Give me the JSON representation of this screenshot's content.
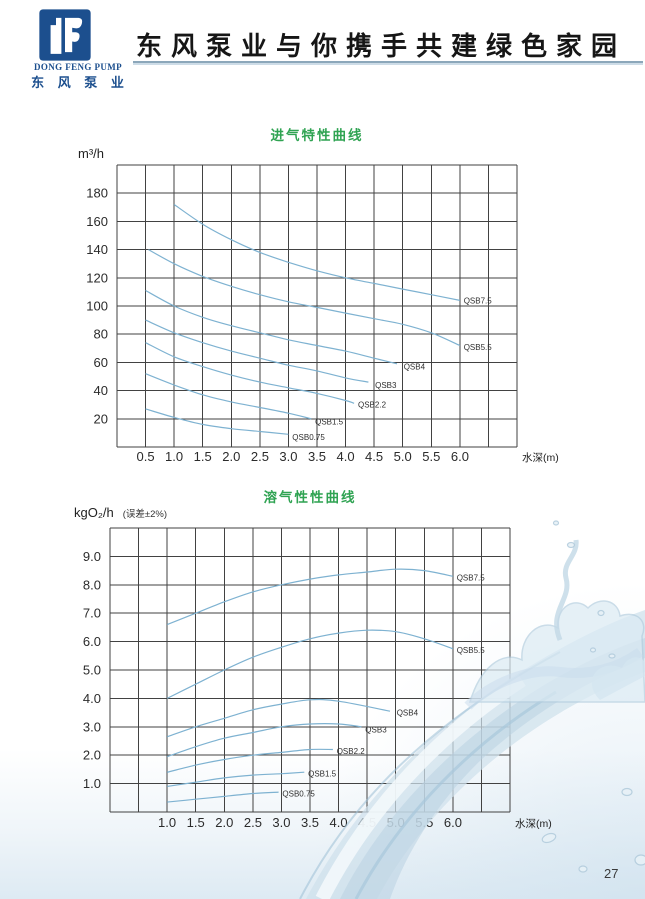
{
  "page": {
    "number": "27"
  },
  "header": {
    "company_en": "DONG FENG PUMP",
    "company_zh": "东 风 泵 业",
    "slogan": "东风泵业与你携手共建绿色家园"
  },
  "colors": {
    "logo_blue": "#1c4f8e",
    "title_green": "#2fa352",
    "curve_blue": "#7eb2d1",
    "grid_gray": "#424242",
    "splash_blue": "#cfe0ec"
  },
  "chart_data": [
    {
      "type": "line",
      "title": "进气特性曲线",
      "unit_label": "m³/h",
      "xlabel": "水深(m)",
      "xlim": [
        0,
        7
      ],
      "xgrid": 0.5,
      "ylim": [
        0,
        200
      ],
      "ygrid": 20,
      "xticks": [
        "0.5",
        "1.0",
        "1.5",
        "2.0",
        "2.5",
        "3.0",
        "3.5",
        "4.0",
        "4.5",
        "5.0",
        "5.5",
        "6.0"
      ],
      "yticks": [
        "20",
        "40",
        "60",
        "80",
        "100",
        "120",
        "140",
        "160",
        "180"
      ],
      "series": [
        {
          "name": "QSB7.5",
          "points": [
            [
              1.0,
              172
            ],
            [
              1.5,
              158
            ],
            [
              2.0,
              147
            ],
            [
              2.5,
              138
            ],
            [
              3.0,
              131
            ],
            [
              3.5,
              125
            ],
            [
              4.0,
              120
            ],
            [
              4.5,
              116
            ],
            [
              5.0,
              112
            ],
            [
              5.5,
              108
            ],
            [
              6.0,
              104
            ]
          ],
          "label_xy": [
            6.05,
            104
          ]
        },
        {
          "name": "QSB5.5",
          "points": [
            [
              0.55,
              140
            ],
            [
              1.0,
              130
            ],
            [
              1.5,
              121
            ],
            [
              2.0,
              114
            ],
            [
              2.5,
              108
            ],
            [
              3.0,
              103
            ],
            [
              3.5,
              99
            ],
            [
              4.0,
              95
            ],
            [
              4.5,
              91
            ],
            [
              5.0,
              87
            ],
            [
              5.5,
              81
            ],
            [
              6.0,
              72
            ]
          ],
          "label_xy": [
            6.05,
            71
          ]
        },
        {
          "name": "QSB4",
          "points": [
            [
              0.5,
              111
            ],
            [
              1.0,
              100
            ],
            [
              1.5,
              92
            ],
            [
              2.0,
              86
            ],
            [
              2.5,
              81
            ],
            [
              3.0,
              76
            ],
            [
              3.5,
              72
            ],
            [
              4.0,
              68
            ],
            [
              4.5,
              63
            ],
            [
              4.9,
              59
            ]
          ],
          "label_xy": [
            5.0,
            57
          ]
        },
        {
          "name": "QSB3",
          "points": [
            [
              0.5,
              90
            ],
            [
              1.0,
              81
            ],
            [
              1.5,
              74
            ],
            [
              2.0,
              68
            ],
            [
              2.5,
              63
            ],
            [
              3.0,
              58
            ],
            [
              3.5,
              54
            ],
            [
              4.0,
              49
            ],
            [
              4.4,
              46
            ]
          ],
          "label_xy": [
            4.5,
            44
          ]
        },
        {
          "name": "QSB2.2",
          "points": [
            [
              0.5,
              74
            ],
            [
              1.0,
              64
            ],
            [
              1.5,
              57
            ],
            [
              2.0,
              51
            ],
            [
              2.5,
              46
            ],
            [
              3.0,
              42
            ],
            [
              3.5,
              38
            ],
            [
              4.0,
              33
            ],
            [
              4.15,
              31
            ]
          ],
          "label_xy": [
            4.2,
            30
          ]
        },
        {
          "name": "QSB1.5",
          "points": [
            [
              0.5,
              52
            ],
            [
              1.0,
              44
            ],
            [
              1.5,
              37
            ],
            [
              2.0,
              32
            ],
            [
              2.5,
              28
            ],
            [
              3.0,
              24
            ],
            [
              3.4,
              20
            ]
          ],
          "label_xy": [
            3.45,
            18
          ]
        },
        {
          "name": "QSB0.75",
          "points": [
            [
              0.5,
              27
            ],
            [
              1.0,
              21
            ],
            [
              1.5,
              16
            ],
            [
              2.0,
              13
            ],
            [
              2.5,
              11
            ],
            [
              3.0,
              9
            ]
          ],
          "label_xy": [
            3.05,
            7
          ]
        }
      ]
    },
    {
      "type": "line",
      "title": "溶气性性曲线",
      "unit_label": "kgO₂/h",
      "error_note": "(误差±2%)",
      "xlabel": "水深(m)",
      "xlim": [
        0,
        7
      ],
      "xgrid": 0.5,
      "ylim": [
        0,
        10
      ],
      "ygrid": 1,
      "xticks": [
        "1.0",
        "1.5",
        "2.0",
        "2.5",
        "3.0",
        "3.5",
        "4.0",
        "4.5",
        "5.0",
        "5.5",
        "6.0"
      ],
      "yticks": [
        "1.0",
        "2.0",
        "3.0",
        "4.0",
        "5.0",
        "6.0",
        "7.0",
        "8.0",
        "9.0"
      ],
      "series": [
        {
          "name": "QSB7.5",
          "points": [
            [
              1.0,
              6.6
            ],
            [
              1.5,
              7.0
            ],
            [
              2.0,
              7.4
            ],
            [
              2.5,
              7.75
            ],
            [
              3.0,
              8.0
            ],
            [
              3.5,
              8.2
            ],
            [
              4.0,
              8.35
            ],
            [
              4.5,
              8.45
            ],
            [
              5.0,
              8.55
            ],
            [
              5.5,
              8.5
            ],
            [
              6.0,
              8.3
            ]
          ],
          "label_xy": [
            6.05,
            8.25
          ]
        },
        {
          "name": "QSB5.5",
          "points": [
            [
              1.0,
              4.0
            ],
            [
              1.5,
              4.5
            ],
            [
              2.0,
              5.0
            ],
            [
              2.5,
              5.45
            ],
            [
              3.0,
              5.8
            ],
            [
              3.5,
              6.1
            ],
            [
              4.0,
              6.3
            ],
            [
              4.5,
              6.4
            ],
            [
              5.0,
              6.35
            ],
            [
              5.5,
              6.1
            ],
            [
              6.0,
              5.75
            ]
          ],
          "label_xy": [
            6.05,
            5.7
          ]
        },
        {
          "name": "QSB4",
          "points": [
            [
              1.0,
              2.65
            ],
            [
              1.5,
              3.0
            ],
            [
              2.0,
              3.3
            ],
            [
              2.5,
              3.6
            ],
            [
              3.0,
              3.8
            ],
            [
              3.5,
              3.95
            ],
            [
              4.0,
              3.9
            ],
            [
              4.9,
              3.55
            ]
          ],
          "label_xy": [
            5.0,
            3.5
          ]
        },
        {
          "name": "QSB3",
          "points": [
            [
              1.0,
              1.95
            ],
            [
              1.5,
              2.3
            ],
            [
              2.0,
              2.6
            ],
            [
              2.5,
              2.8
            ],
            [
              3.0,
              3.0
            ],
            [
              3.5,
              3.1
            ],
            [
              4.0,
              3.1
            ],
            [
              4.4,
              3.0
            ]
          ],
          "label_xy": [
            4.45,
            2.9
          ]
        },
        {
          "name": "QSB2.2",
          "points": [
            [
              1.0,
              1.4
            ],
            [
              1.5,
              1.65
            ],
            [
              2.0,
              1.85
            ],
            [
              2.5,
              2.0
            ],
            [
              3.0,
              2.1
            ],
            [
              3.5,
              2.2
            ],
            [
              3.9,
              2.2
            ]
          ],
          "label_xy": [
            3.95,
            2.15
          ]
        },
        {
          "name": "QSB1.5",
          "points": [
            [
              1.0,
              0.9
            ],
            [
              1.5,
              1.05
            ],
            [
              2.0,
              1.2
            ],
            [
              2.5,
              1.3
            ],
            [
              3.0,
              1.35
            ],
            [
              3.4,
              1.4
            ]
          ],
          "label_xy": [
            3.45,
            1.35
          ]
        },
        {
          "name": "QSB0.75",
          "points": [
            [
              1.0,
              0.35
            ],
            [
              1.5,
              0.45
            ],
            [
              2.0,
              0.55
            ],
            [
              2.5,
              0.65
            ],
            [
              2.95,
              0.7
            ]
          ],
          "label_xy": [
            3.0,
            0.65
          ]
        }
      ]
    }
  ]
}
